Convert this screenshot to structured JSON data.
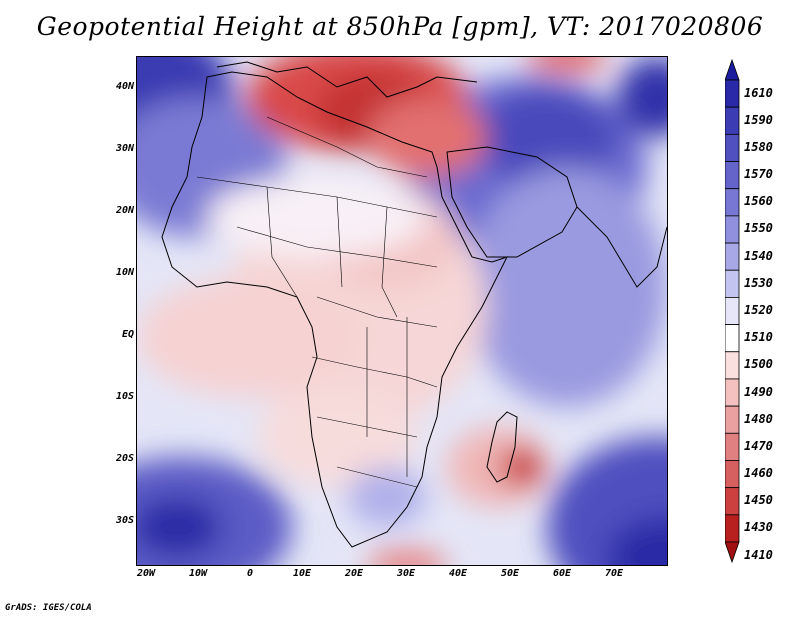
{
  "title": "Geopotential Height at 850hPa [gpm], VT: 2017020806",
  "credit": "GrADS: IGES/COLA",
  "axes": {
    "lat_labels": [
      "40N",
      "30N",
      "20N",
      "10N",
      "EQ",
      "10S",
      "20S",
      "30S"
    ],
    "lon_labels": [
      "20W",
      "10W",
      "0",
      "10E",
      "20E",
      "30E",
      "40E",
      "50E",
      "60E",
      "70E"
    ]
  },
  "colorbar": {
    "labels": [
      "1610",
      "1590",
      "1580",
      "1570",
      "1560",
      "1550",
      "1540",
      "1530",
      "1520",
      "1510",
      "1500",
      "1490",
      "1480",
      "1470",
      "1460",
      "1450",
      "1430",
      "1410"
    ],
    "colors": [
      "#1c1c9e",
      "#2a2aa8",
      "#3c3cb4",
      "#5050c0",
      "#6464ca",
      "#7878d4",
      "#9090de",
      "#a8a8e6",
      "#c4c4f0",
      "#e6e6f8",
      "#ffffff",
      "#fbe0e0",
      "#f4c0c0",
      "#eaa0a0",
      "#e08080",
      "#d66060",
      "#cc4040",
      "#b82020",
      "#a01010"
    ]
  }
}
